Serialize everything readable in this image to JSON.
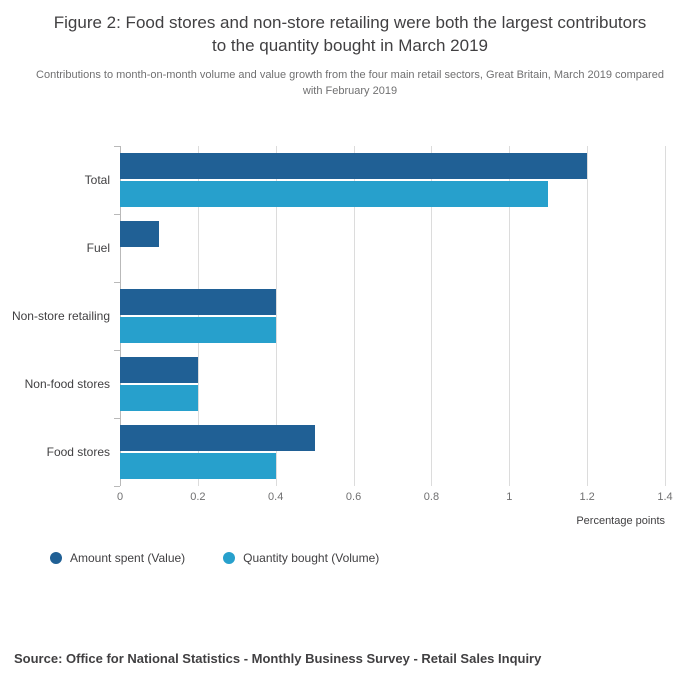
{
  "header": {
    "title": "Figure 2: Food stores and non-store retailing were both the largest contributors to the quantity bought in March 2019",
    "subtitle": "Contributions to month-on-month volume and value growth from the four main retail sectors, Great Britain, March 2019 compared with February 2019"
  },
  "chart_data": {
    "type": "bar",
    "orientation": "horizontal",
    "categories": [
      "Total",
      "Fuel",
      "Non-store retailing",
      "Non-food stores",
      "Food stores"
    ],
    "series": [
      {
        "name": "Amount spent (Value)",
        "color": "#206095",
        "values": [
          1.2,
          0.1,
          0.4,
          0.2,
          0.5
        ]
      },
      {
        "name": "Quantity bought (Volume)",
        "color": "#27a0cc",
        "values": [
          1.1,
          0.0,
          0.4,
          0.2,
          0.4
        ]
      }
    ],
    "xlabel": "Percentage points",
    "xlim": [
      0,
      1.4
    ],
    "xticks": [
      "0",
      "0.2",
      "0.4",
      "0.6",
      "0.8",
      "1",
      "1.2",
      "1.4"
    ],
    "grid": true,
    "legend_position": "bottom-left"
  },
  "footer": {
    "source": "Source: Office for National Statistics - Monthly Business Survey - Retail Sales Inquiry"
  }
}
